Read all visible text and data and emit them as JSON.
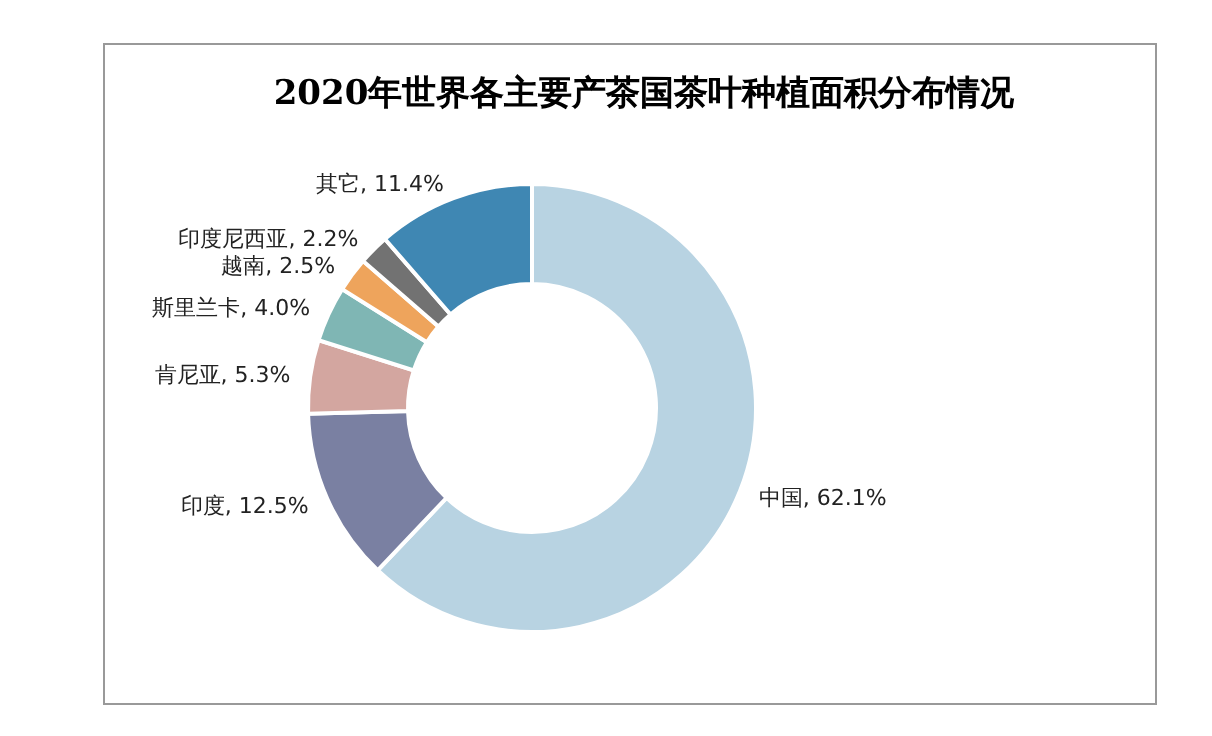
{
  "chart_data": {
    "type": "donut",
    "title": "2020年世界各主要产茶国茶叶种植面积分布情况",
    "categories": [
      "中国",
      "印度",
      "肯尼亚",
      "斯里兰卡",
      "越南",
      "印度尼西亚",
      "其它"
    ],
    "values": [
      62.1,
      12.5,
      5.3,
      4.0,
      2.5,
      2.2,
      11.4
    ],
    "colors": [
      "#b8d3e2",
      "#7a80a2",
      "#d3a6a0",
      "#7fb6b4",
      "#eea45c",
      "#727272",
      "#3f87b3"
    ],
    "value_labels": [
      ", 62.1%",
      ", 12.5%",
      ", 5.3%",
      ", 4.0%",
      ", 2.5%",
      ", 2.2%",
      ", 11.4%"
    ]
  }
}
